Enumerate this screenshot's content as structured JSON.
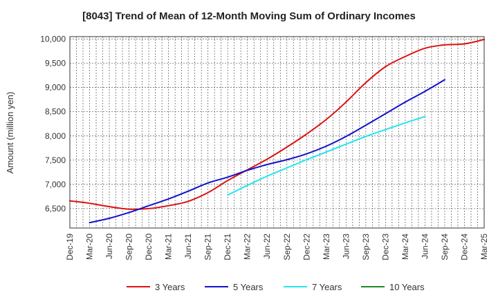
{
  "chart_data": {
    "type": "line",
    "title": "[8043]  Trend of Mean of 12-Month Moving Sum of Ordinary Incomes",
    "xlabel": "",
    "ylabel": "Amount (million yen)",
    "ylim": [
      6100,
      10050
    ],
    "yticks": [
      6500,
      7000,
      7500,
      8000,
      8500,
      9000,
      9500,
      10000
    ],
    "ytick_labels": [
      "6,500",
      "7,000",
      "7,500",
      "8,000",
      "8,500",
      "9,000",
      "9,500",
      "10,000"
    ],
    "xticks": [
      "Dec-19",
      "Mar-20",
      "Jun-20",
      "Sep-20",
      "Dec-20",
      "Mar-21",
      "Jun-21",
      "Sep-21",
      "Dec-21",
      "Mar-22",
      "Jun-22",
      "Sep-22",
      "Dec-22",
      "Mar-23",
      "Jun-23",
      "Sep-23",
      "Dec-23",
      "Mar-24",
      "Jun-24",
      "Sep-24",
      "Dec-24",
      "Mar-25"
    ],
    "grid": true,
    "legend_position": "bottom",
    "series": [
      {
        "name": "3 Years",
        "color": "#dd1111",
        "points": [
          [
            0,
            6660
          ],
          [
            1,
            6610
          ],
          [
            2,
            6540
          ],
          [
            3,
            6490
          ],
          [
            4,
            6500
          ],
          [
            5,
            6560
          ],
          [
            6,
            6650
          ],
          [
            7,
            6830
          ],
          [
            8,
            7080
          ],
          [
            9,
            7300
          ],
          [
            10,
            7520
          ],
          [
            11,
            7770
          ],
          [
            12,
            8040
          ],
          [
            13,
            8340
          ],
          [
            14,
            8700
          ],
          [
            15,
            9100
          ],
          [
            16,
            9430
          ],
          [
            17,
            9640
          ],
          [
            18,
            9810
          ],
          [
            19,
            9880
          ],
          [
            20,
            9900
          ],
          [
            21,
            9990
          ]
        ]
      },
      {
        "name": "5 Years",
        "color": "#1111cc",
        "points": [
          [
            1,
            6210
          ],
          [
            2,
            6300
          ],
          [
            3,
            6420
          ],
          [
            4,
            6560
          ],
          [
            5,
            6700
          ],
          [
            6,
            6860
          ],
          [
            7,
            7030
          ],
          [
            8,
            7150
          ],
          [
            9,
            7290
          ],
          [
            10,
            7410
          ],
          [
            11,
            7510
          ],
          [
            12,
            7630
          ],
          [
            13,
            7790
          ],
          [
            14,
            7990
          ],
          [
            15,
            8220
          ],
          [
            16,
            8460
          ],
          [
            17,
            8700
          ],
          [
            18,
            8920
          ],
          [
            19,
            9160
          ]
        ]
      },
      {
        "name": "7 Years",
        "color": "#22e6ee",
        "points": [
          [
            8,
            6780
          ],
          [
            9,
            6980
          ],
          [
            10,
            7170
          ],
          [
            11,
            7340
          ],
          [
            12,
            7510
          ],
          [
            13,
            7670
          ],
          [
            14,
            7830
          ],
          [
            15,
            7990
          ],
          [
            16,
            8130
          ],
          [
            17,
            8270
          ],
          [
            18,
            8400
          ]
        ]
      },
      {
        "name": "10 Years",
        "color": "#228822",
        "points": []
      }
    ]
  }
}
